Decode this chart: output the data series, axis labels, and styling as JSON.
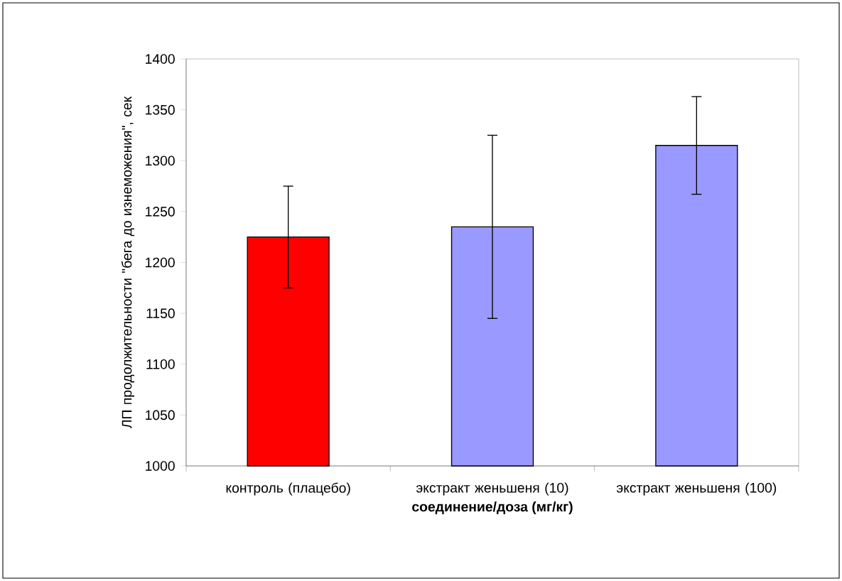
{
  "chart_data": {
    "type": "bar",
    "xlabel": "соединение/доза (мг/кг)",
    "ylabel": "ЛП продолжительности \"бега до изнеможения\", сек",
    "categories": [
      "контроль (плацебо)",
      "экстракт женьшеня (10)",
      "экстракт женьшеня (100)"
    ],
    "values": [
      1225,
      1235,
      1315
    ],
    "errors": [
      50,
      90,
      48
    ],
    "colors": [
      "#ff0000",
      "#9999ff",
      "#9999ff"
    ],
    "ylim": [
      1000,
      1400
    ],
    "yticks": [
      1000,
      1050,
      1100,
      1150,
      1200,
      1250,
      1300,
      1350,
      1400
    ],
    "grid": false
  }
}
